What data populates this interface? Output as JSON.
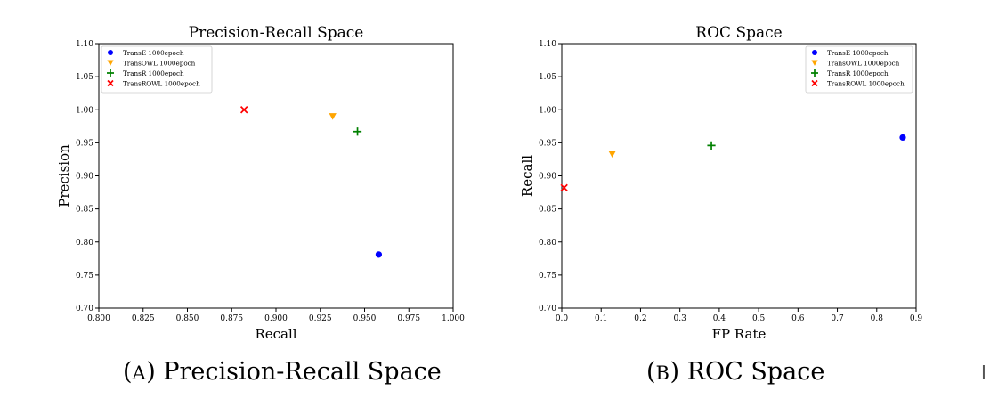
{
  "captions": {
    "a_label": "A",
    "a_text": "Precision-Recall Space",
    "b_label": "B",
    "b_text": "ROC Space"
  },
  "cursor_glyph": "I",
  "chart_data": [
    {
      "type": "scatter",
      "title": "Precision-Recall Space",
      "xlabel": "Recall",
      "ylabel": "Precision",
      "xlim": [
        0.8,
        1.0
      ],
      "ylim": [
        0.7,
        1.1
      ],
      "xticks": [
        "0.800",
        "0.825",
        "0.850",
        "0.875",
        "0.900",
        "0.925",
        "0.950",
        "0.975",
        "1.000"
      ],
      "yticks": [
        "0.70",
        "0.75",
        "0.80",
        "0.85",
        "0.90",
        "0.95",
        "1.00",
        "1.05",
        "1.10"
      ],
      "legend": "top-left",
      "grid": false,
      "series": [
        {
          "name": "TransE 1000epoch",
          "marker": "circle",
          "color": "#0000ff",
          "x": [
            0.958
          ],
          "y": [
            0.781
          ]
        },
        {
          "name": "TransOWL 1000epoch",
          "marker": "triangle-down",
          "color": "#ffa500",
          "x": [
            0.932
          ],
          "y": [
            0.99
          ]
        },
        {
          "name": "TransR 1000epoch",
          "marker": "plus",
          "color": "#008000",
          "x": [
            0.946
          ],
          "y": [
            0.967
          ]
        },
        {
          "name": "TransROWL 1000epoch",
          "marker": "x",
          "color": "#ff0000",
          "x": [
            0.882
          ],
          "y": [
            1.0
          ]
        }
      ]
    },
    {
      "type": "scatter",
      "title": "ROC Space",
      "xlabel": "FP Rate",
      "ylabel": "Recall",
      "xlim": [
        0.0,
        0.9
      ],
      "ylim": [
        0.7,
        1.1
      ],
      "xticks": [
        "0.0",
        "0.1",
        "0.2",
        "0.3",
        "0.4",
        "0.5",
        "0.6",
        "0.7",
        "0.8",
        "0.9"
      ],
      "yticks": [
        "0.70",
        "0.75",
        "0.80",
        "0.85",
        "0.90",
        "0.95",
        "1.00",
        "1.05",
        "1.10"
      ],
      "legend": "top-right",
      "grid": false,
      "series": [
        {
          "name": "TransE 1000epoch",
          "marker": "circle",
          "color": "#0000ff",
          "x": [
            0.866
          ],
          "y": [
            0.958
          ]
        },
        {
          "name": "TransOWL 1000epoch",
          "marker": "triangle-down",
          "color": "#ffa500",
          "x": [
            0.128
          ],
          "y": [
            0.933
          ]
        },
        {
          "name": "TransR 1000epoch",
          "marker": "plus",
          "color": "#008000",
          "x": [
            0.38
          ],
          "y": [
            0.946
          ]
        },
        {
          "name": "TransROWL 1000epoch",
          "marker": "x",
          "color": "#ff0000",
          "x": [
            0.006
          ],
          "y": [
            0.882
          ]
        }
      ]
    }
  ]
}
